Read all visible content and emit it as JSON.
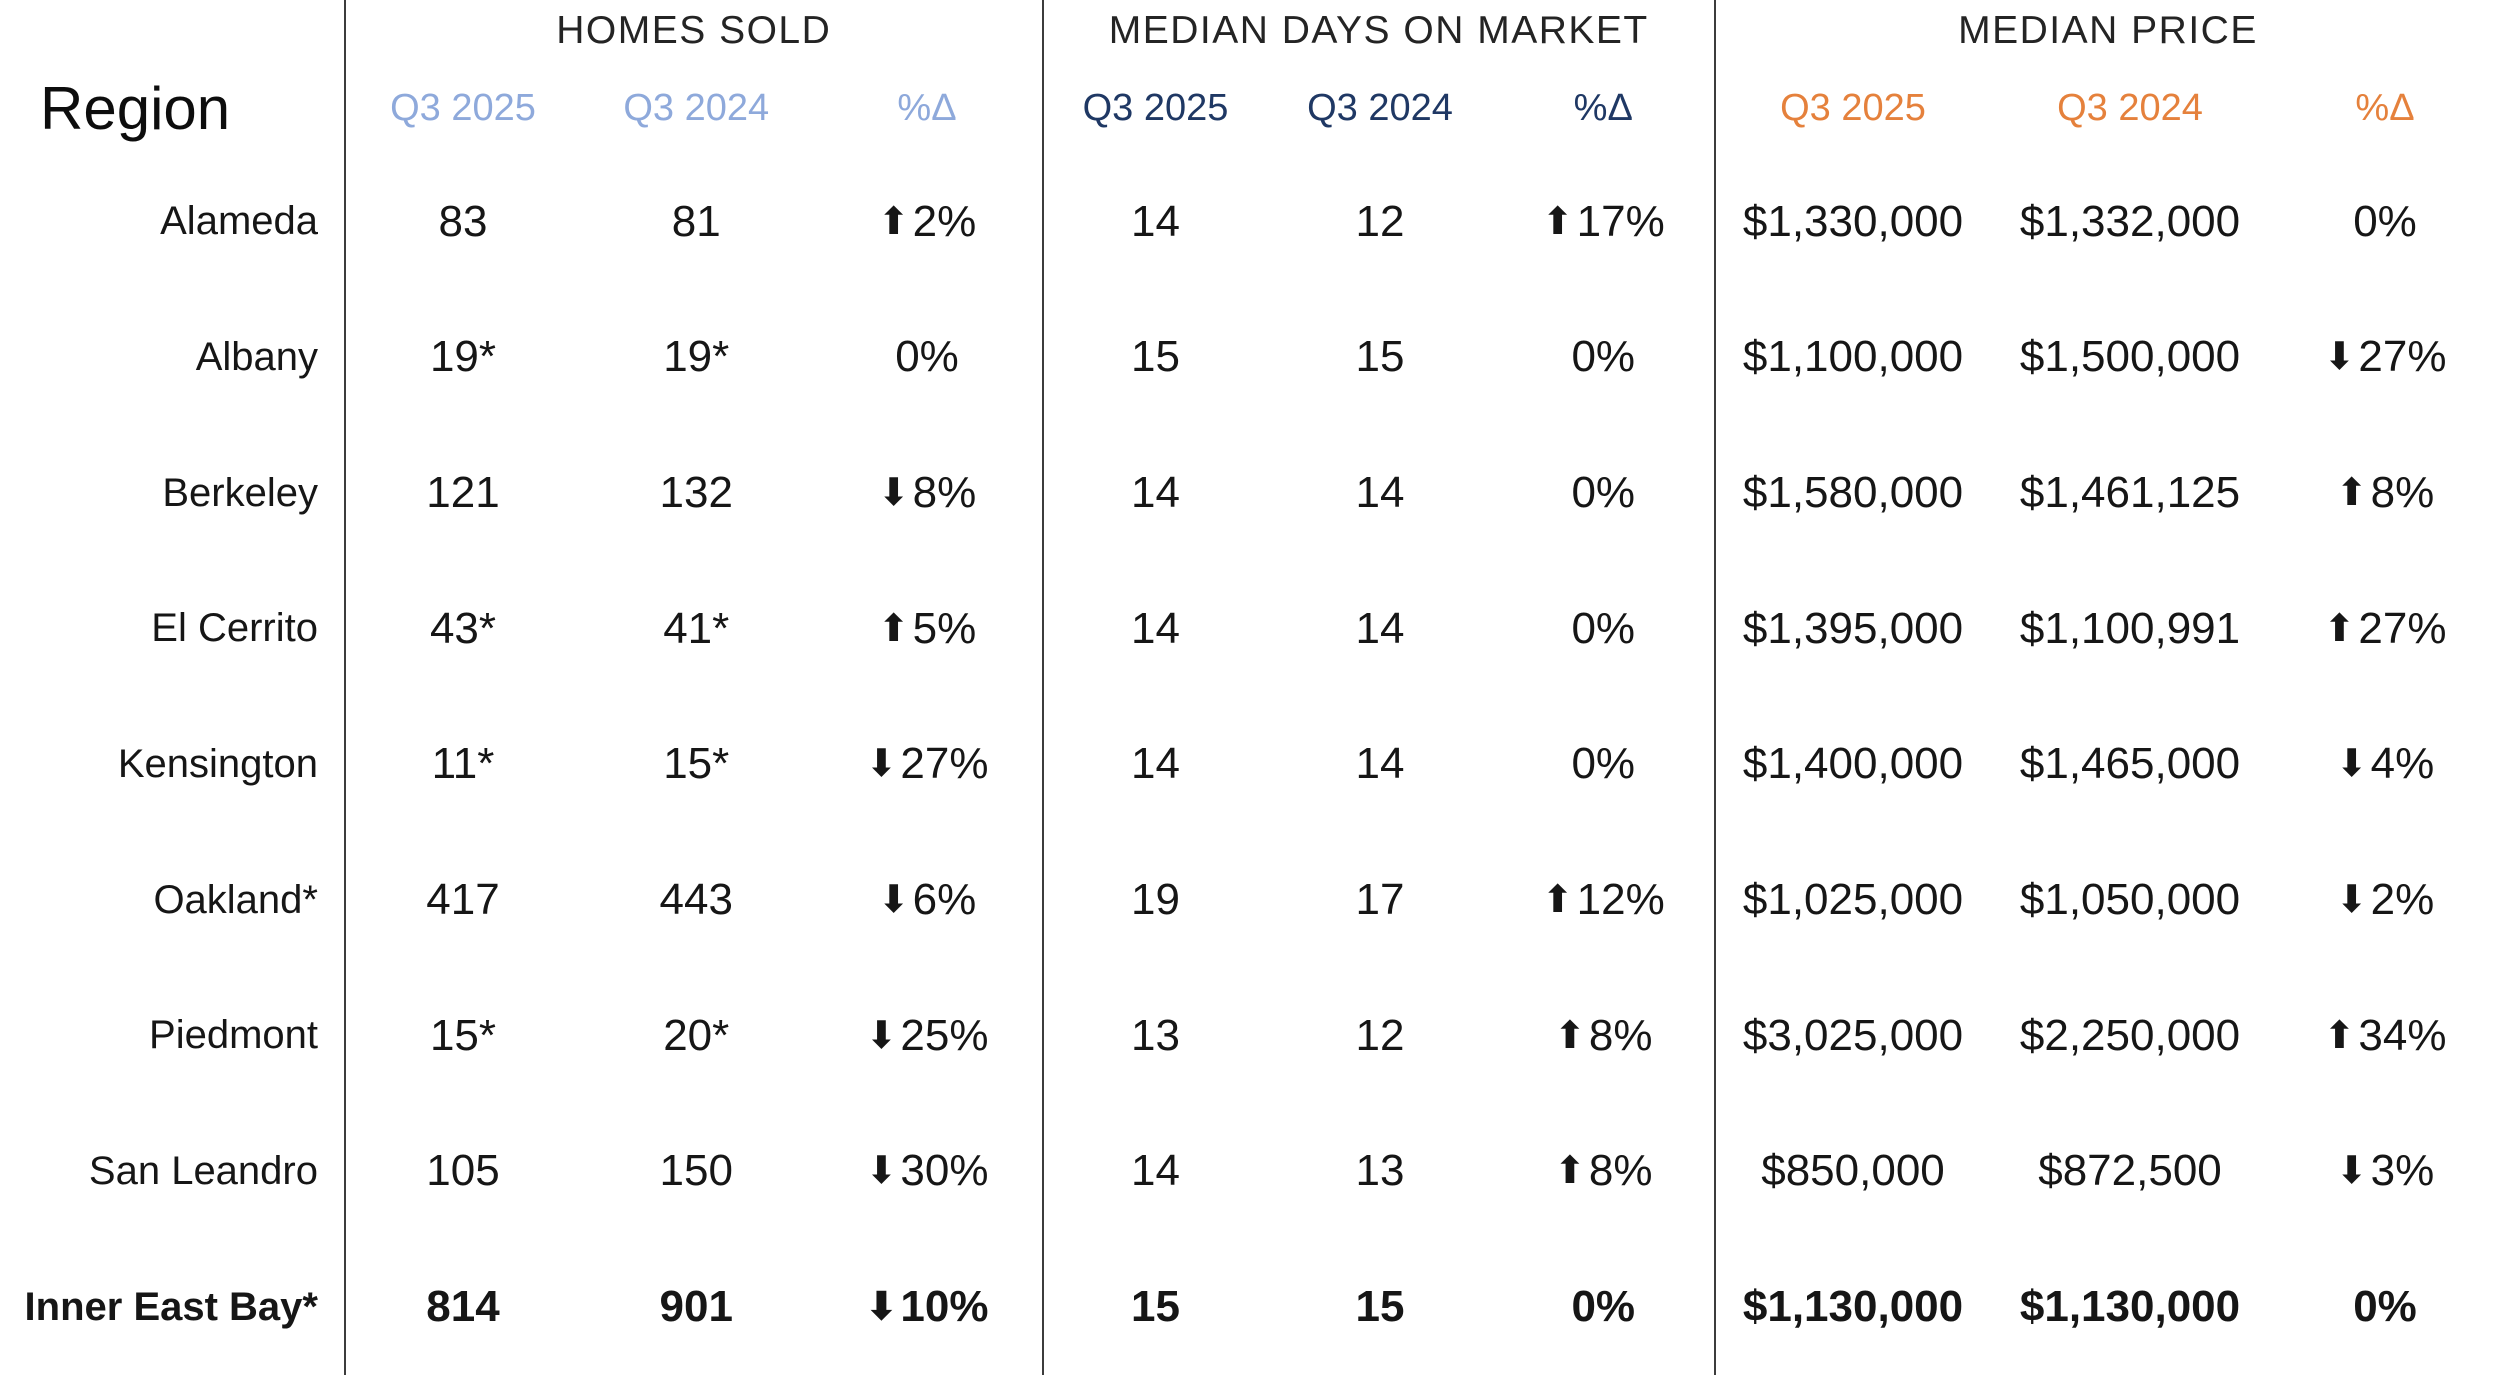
{
  "chart_data": {
    "type": "table",
    "region_header": "Region",
    "sections": [
      {
        "title": "HOMES SOLD",
        "cols": [
          "Q3 2025",
          "Q3 2024",
          "%Δ"
        ]
      },
      {
        "title": "MEDIAN DAYS ON MARKET",
        "cols": [
          "Q3 2025",
          "Q3 2024",
          "%Δ"
        ]
      },
      {
        "title": "MEDIAN PRICE",
        "cols": [
          "Q3 2025",
          "Q3 2024",
          "%Δ"
        ]
      }
    ],
    "rows": [
      {
        "region": "Alameda",
        "bold": false,
        "cells": [
          {
            "v": "83"
          },
          {
            "v": "81"
          },
          {
            "arrow": "up",
            "v": "2%"
          },
          {
            "v": "14"
          },
          {
            "v": "12"
          },
          {
            "arrow": "up",
            "v": "17%"
          },
          {
            "v": "$1,330,000"
          },
          {
            "v": "$1,332,000"
          },
          {
            "arrow": null,
            "v": "0%"
          }
        ]
      },
      {
        "region": "Albany",
        "bold": false,
        "cells": [
          {
            "v": "19*"
          },
          {
            "v": "19*"
          },
          {
            "arrow": null,
            "v": "0%"
          },
          {
            "v": "15"
          },
          {
            "v": "15"
          },
          {
            "arrow": null,
            "v": "0%"
          },
          {
            "v": "$1,100,000"
          },
          {
            "v": "$1,500,000"
          },
          {
            "arrow": "down",
            "v": "27%"
          }
        ]
      },
      {
        "region": "Berkeley",
        "bold": false,
        "cells": [
          {
            "v": "121"
          },
          {
            "v": "132"
          },
          {
            "arrow": "down",
            "v": "8%"
          },
          {
            "v": "14"
          },
          {
            "v": "14"
          },
          {
            "arrow": null,
            "v": "0%"
          },
          {
            "v": "$1,580,000"
          },
          {
            "v": "$1,461,125"
          },
          {
            "arrow": "up",
            "v": "8%"
          }
        ]
      },
      {
        "region": "El Cerrito",
        "bold": false,
        "cells": [
          {
            "v": "43*"
          },
          {
            "v": "41*"
          },
          {
            "arrow": "up",
            "v": "5%"
          },
          {
            "v": "14"
          },
          {
            "v": "14"
          },
          {
            "arrow": null,
            "v": "0%"
          },
          {
            "v": "$1,395,000"
          },
          {
            "v": "$1,100,991"
          },
          {
            "arrow": "up",
            "v": "27%"
          }
        ]
      },
      {
        "region": "Kensington",
        "bold": false,
        "cells": [
          {
            "v": "11*"
          },
          {
            "v": "15*"
          },
          {
            "arrow": "down",
            "v": "27%"
          },
          {
            "v": "14"
          },
          {
            "v": "14"
          },
          {
            "arrow": null,
            "v": "0%"
          },
          {
            "v": "$1,400,000"
          },
          {
            "v": "$1,465,000"
          },
          {
            "arrow": "down",
            "v": "4%"
          }
        ]
      },
      {
        "region": "Oakland*",
        "bold": false,
        "cells": [
          {
            "v": "417"
          },
          {
            "v": "443"
          },
          {
            "arrow": "down",
            "v": "6%"
          },
          {
            "v": "19"
          },
          {
            "v": "17"
          },
          {
            "arrow": "up",
            "v": "12%"
          },
          {
            "v": "$1,025,000"
          },
          {
            "v": "$1,050,000"
          },
          {
            "arrow": "down",
            "v": "2%"
          }
        ]
      },
      {
        "region": "Piedmont",
        "bold": false,
        "cells": [
          {
            "v": "15*"
          },
          {
            "v": "20*"
          },
          {
            "arrow": "down",
            "v": "25%"
          },
          {
            "v": "13"
          },
          {
            "v": "12"
          },
          {
            "arrow": "up",
            "v": "8%"
          },
          {
            "v": "$3,025,000"
          },
          {
            "v": "$2,250,000"
          },
          {
            "arrow": "up",
            "v": "34%"
          }
        ]
      },
      {
        "region": "San Leandro",
        "bold": false,
        "cells": [
          {
            "v": "105"
          },
          {
            "v": "150"
          },
          {
            "arrow": "down",
            "v": "30%"
          },
          {
            "v": "14"
          },
          {
            "v": "13"
          },
          {
            "arrow": "up",
            "v": "8%"
          },
          {
            "v": "$850,000"
          },
          {
            "v": "$872,500"
          },
          {
            "arrow": "down",
            "v": "3%"
          }
        ]
      },
      {
        "region": "Inner East Bay*",
        "bold": true,
        "cells": [
          {
            "v": "814"
          },
          {
            "v": "901"
          },
          {
            "arrow": "down",
            "v": "10%"
          },
          {
            "v": "15"
          },
          {
            "v": "15"
          },
          {
            "arrow": null,
            "v": "0%"
          },
          {
            "v": "$1,130,000"
          },
          {
            "v": "$1,130,000"
          },
          {
            "arrow": null,
            "v": "0%"
          }
        ]
      }
    ]
  },
  "colors": {
    "homes_sold_accent": "#8EA9DB",
    "median_days_accent": "#1F3864",
    "median_price_accent": "#E5813C",
    "divider": "#3c3c3c",
    "text": "#161616"
  },
  "icons": {
    "up_arrow": "⬆",
    "down_arrow": "⬇"
  }
}
